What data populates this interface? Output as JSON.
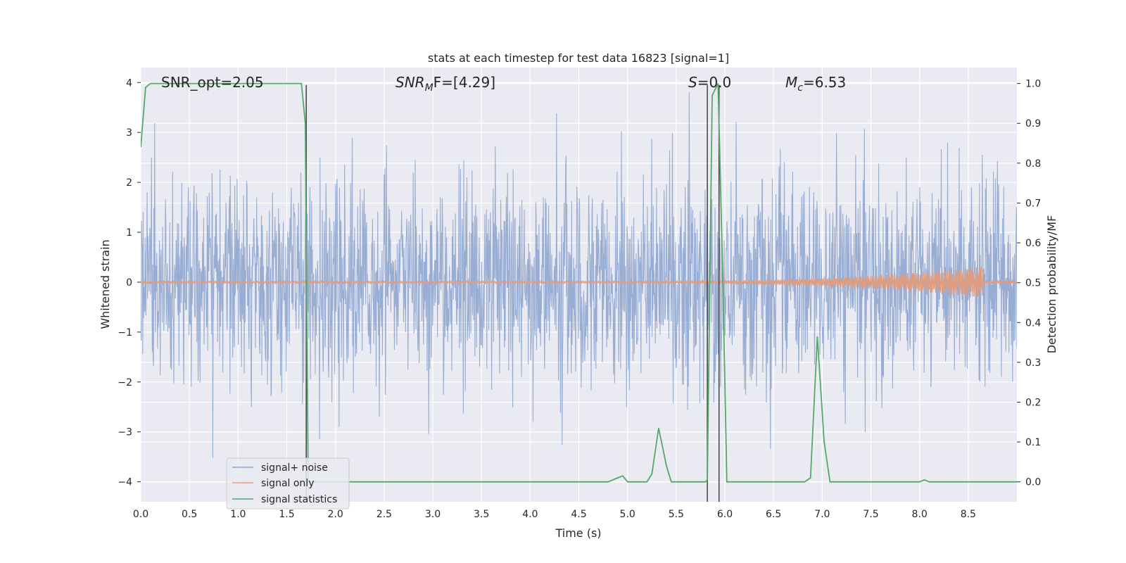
{
  "chart_data": {
    "type": "line",
    "title": "stats at each timestep for test data 16823 [signal=1]",
    "xlabel": "Time (s)",
    "ylabel": "Whitened strain",
    "y2label": "Detection probability/MF",
    "xlim": [
      0,
      9
    ],
    "ylim": [
      -4.4,
      4.3
    ],
    "y2lim": [
      -0.05,
      1.04
    ],
    "grid": true,
    "legend_position": "lower-left",
    "x_ticks": [
      "0.0",
      "0.5",
      "1.0",
      "1.5",
      "2.0",
      "2.5",
      "3.0",
      "3.5",
      "4.0",
      "4.5",
      "5.0",
      "5.5",
      "6.0",
      "6.5",
      "7.0",
      "7.5",
      "8.0",
      "8.5"
    ],
    "y_ticks": [
      "−4",
      "−3",
      "−2",
      "−1",
      "0",
      "1",
      "2",
      "3",
      "4"
    ],
    "y2_ticks": [
      "0.0",
      "0.1",
      "0.2",
      "0.3",
      "0.4",
      "0.5",
      "0.6",
      "0.7",
      "0.8",
      "0.9",
      "1.0"
    ],
    "annotations": {
      "snr_opt": "SNR_opt=2.05",
      "snr_mf_base": "SNR",
      "snr_mf_sub": "M",
      "snr_mf_rest": "F=[4.29]",
      "s_var": "S",
      "s_rest": "=0.0",
      "mc_var": "M",
      "mc_sub": "c",
      "mc_rest": "=6.53"
    },
    "vertical_lines": [
      1.7,
      5.82,
      5.94
    ],
    "series": [
      {
        "name": "signal+ noise",
        "color": "#8fa6cf",
        "description_values": "whitened noisy strain, approx uniform noise, amplitude mostly within ±1.6 with spikes to about ±3.9"
      },
      {
        "name": "signal only",
        "color": "#dd9d83",
        "chirp": {
          "start": 4.5,
          "end": 8.65,
          "peak_amplitude": 0.3
        }
      },
      {
        "name": "signal statistics",
        "color": "#55a868",
        "x": [
          0.0,
          0.05,
          0.1,
          1.65,
          1.69,
          1.72,
          1.8,
          4.8,
          4.9,
          4.95,
          5.0,
          5.2,
          5.25,
          5.32,
          5.4,
          5.45,
          5.6,
          5.8,
          5.82,
          5.87,
          5.93,
          5.98,
          6.02,
          6.82,
          6.88,
          6.95,
          7.02,
          7.08,
          8.0,
          8.05,
          8.1,
          8.15,
          9.0
        ],
        "values": [
          0.84,
          0.99,
          1.0,
          1.0,
          0.9,
          0.0,
          0.0,
          0.0,
          0.01,
          0.015,
          0.0,
          0.0,
          0.02,
          0.135,
          0.04,
          0.0,
          0.0,
          0.0,
          0.005,
          0.97,
          1.0,
          0.5,
          0.0,
          0.0,
          0.01,
          0.365,
          0.1,
          0.0,
          0.0,
          0.005,
          0.0,
          0.0,
          0.0
        ]
      }
    ],
    "legend": [
      "signal+ noise",
      "signal only",
      "signal statistics"
    ]
  }
}
